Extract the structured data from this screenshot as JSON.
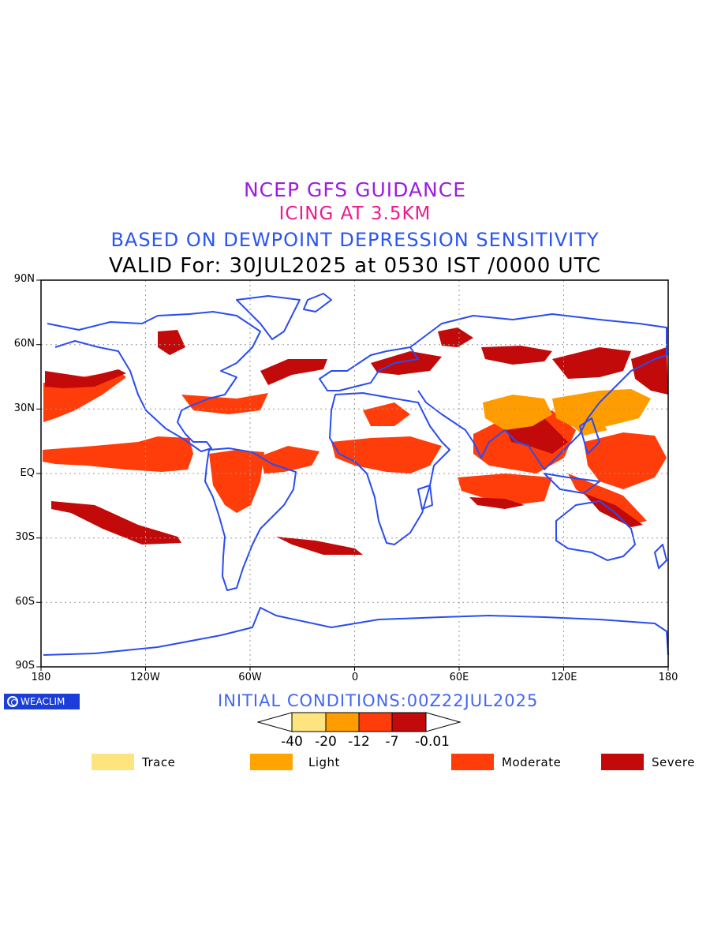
{
  "header": {
    "line1": "NCEP GFS GUIDANCE",
    "line2": "ICING AT 3.5KM",
    "line3": "BASED ON DEWPOINT DEPRESSION SENSITIVITY",
    "line4": "VALID For: 30JUL2025 at 0530 IST /0000 UTC"
  },
  "axes": {
    "lat_labels": [
      "90N",
      "60N",
      "30N",
      "EQ",
      "30S",
      "60S",
      "90S"
    ],
    "lon_labels": [
      "180",
      "120W",
      "60W",
      "0",
      "60E",
      "120E",
      "180"
    ]
  },
  "branding": {
    "label": "WEACLIM",
    "icon": "weaclim-logo-icon"
  },
  "initial_conditions": "INITIAL CONDITIONS:00Z22JUL2025",
  "color_scale": {
    "thresholds": [
      "-40",
      "-20",
      "-12",
      "-7",
      "-0.01"
    ],
    "colors": [
      "#fde47f",
      "#ff9c00",
      "#ff3d0a",
      "#c20a0a"
    ]
  },
  "legend": [
    {
      "label": "Trace",
      "color": "#fde47f"
    },
    {
      "label": "Light",
      "color": "#ffa400"
    },
    {
      "label": "Moderate",
      "color": "#ff3d0a"
    },
    {
      "label": "Severe",
      "color": "#c20a0a"
    }
  ],
  "map_colors": {
    "coast": "#2a4cf0",
    "moderate": "#ff3d0a",
    "severe": "#c20a0a",
    "light": "#ff9c00",
    "grid": "#9a9a9a"
  }
}
